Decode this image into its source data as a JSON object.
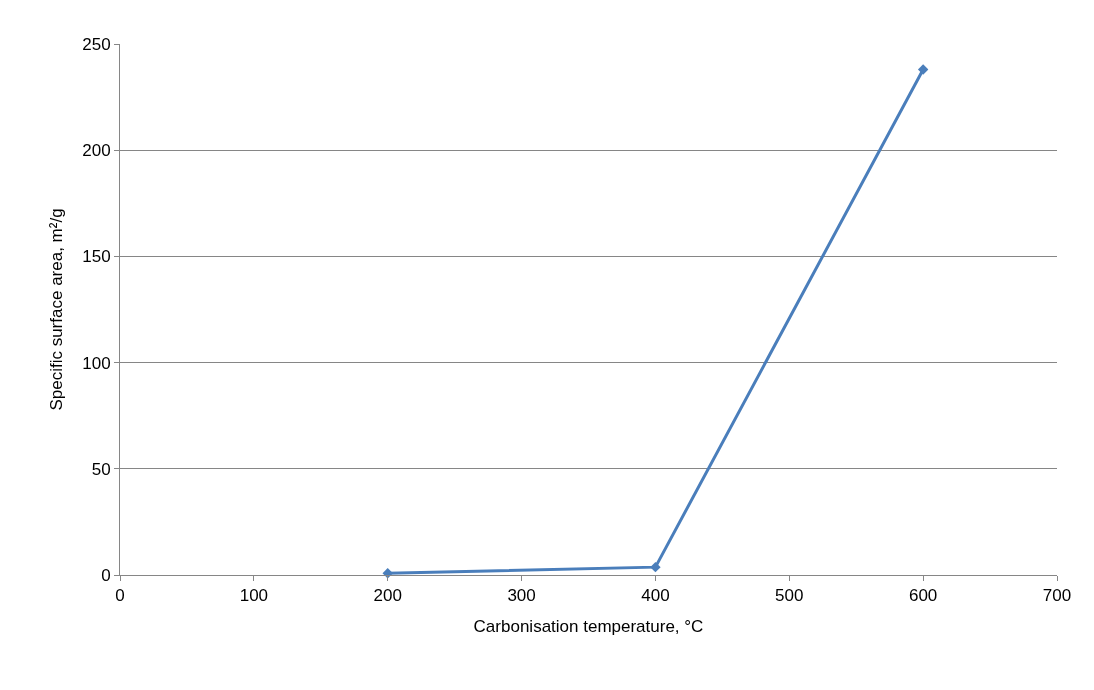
{
  "chart_data": {
    "type": "line",
    "xlabel": "Carbonisation temperature, °C",
    "ylabel": "Specific surface area, m²/g",
    "x": [
      200,
      400,
      600
    ],
    "series": [
      {
        "color": "#4a7ebb",
        "values": [
          0.8,
          3.7,
          238
        ]
      }
    ],
    "xlim": [
      0,
      700
    ],
    "xticks": [
      0,
      100,
      200,
      300,
      400,
      500,
      600,
      700
    ],
    "ylim": [
      0,
      250
    ],
    "yticks": [
      0,
      50,
      100,
      150,
      200,
      250
    ],
    "grid": "y",
    "marker": "diamond",
    "line_style": "solid",
    "legend": false
  }
}
